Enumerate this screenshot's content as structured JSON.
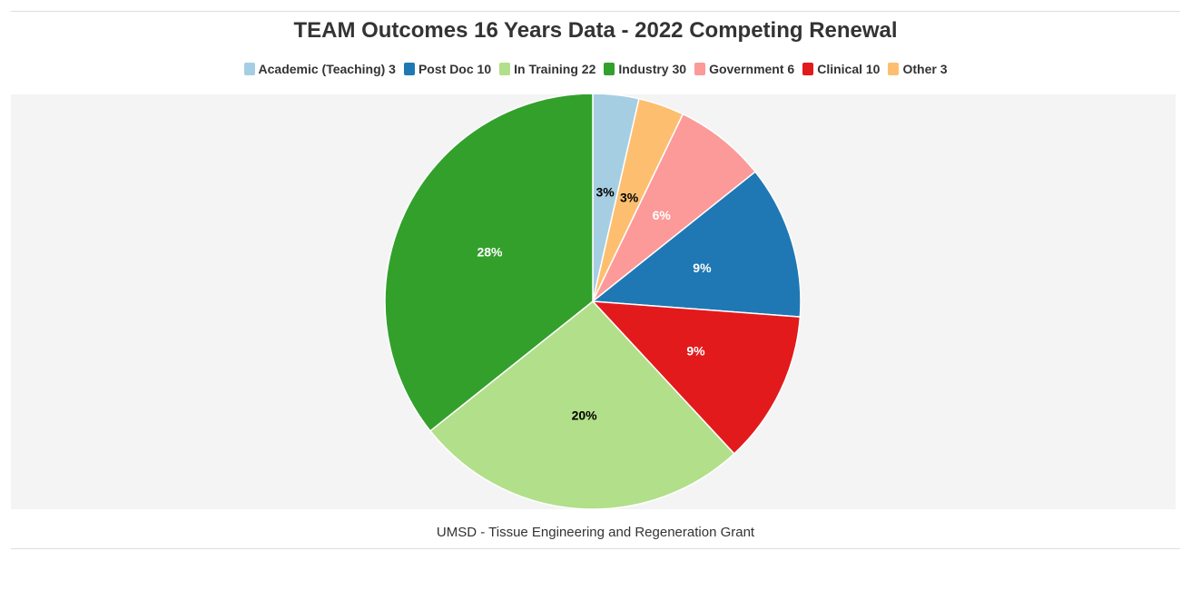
{
  "chart_data": {
    "type": "pie",
    "title": "TEAM Outcomes 16 Years Data - 2022 Competing Renewal",
    "caption": "UMSD - Tissue Engineering and Regeneration Grant",
    "legend_position": "top-center",
    "legend": [
      {
        "label": "Academic (Teaching) 3",
        "color": "#a6cee3"
      },
      {
        "label": "Post Doc 10",
        "color": "#1f78b4"
      },
      {
        "label": "In Training 22",
        "color": "#b2df8a"
      },
      {
        "label": "Industry 30",
        "color": "#33a02c"
      },
      {
        "label": "Government 6",
        "color": "#fb9a99"
      },
      {
        "label": "Clinical 10",
        "color": "#e31a1c"
      },
      {
        "label": "Other 3",
        "color": "#fdbf6f"
      }
    ],
    "slices": [
      {
        "name": "Academic (Teaching)",
        "value": 3,
        "label": "3%",
        "color": "#a6cee3",
        "label_color": "#000000"
      },
      {
        "name": "Other",
        "value": 3,
        "label": "3%",
        "color": "#fdbf6f",
        "label_color": "#000000"
      },
      {
        "name": "Government",
        "value": 6,
        "label": "6%",
        "color": "#fb9a99",
        "label_color": "#ffffff"
      },
      {
        "name": "Post Doc",
        "value": 10,
        "label": "9%",
        "color": "#1f78b4",
        "label_color": "#ffffff"
      },
      {
        "name": "Clinical",
        "value": 10,
        "label": "9%",
        "color": "#e31a1c",
        "label_color": "#ffffff"
      },
      {
        "name": "In Training",
        "value": 22,
        "label": "20%",
        "color": "#b2df8a",
        "label_color": "#000000"
      },
      {
        "name": "Industry",
        "value": 30,
        "label": "28%",
        "color": "#33a02c",
        "label_color": "#ffffff"
      }
    ]
  }
}
